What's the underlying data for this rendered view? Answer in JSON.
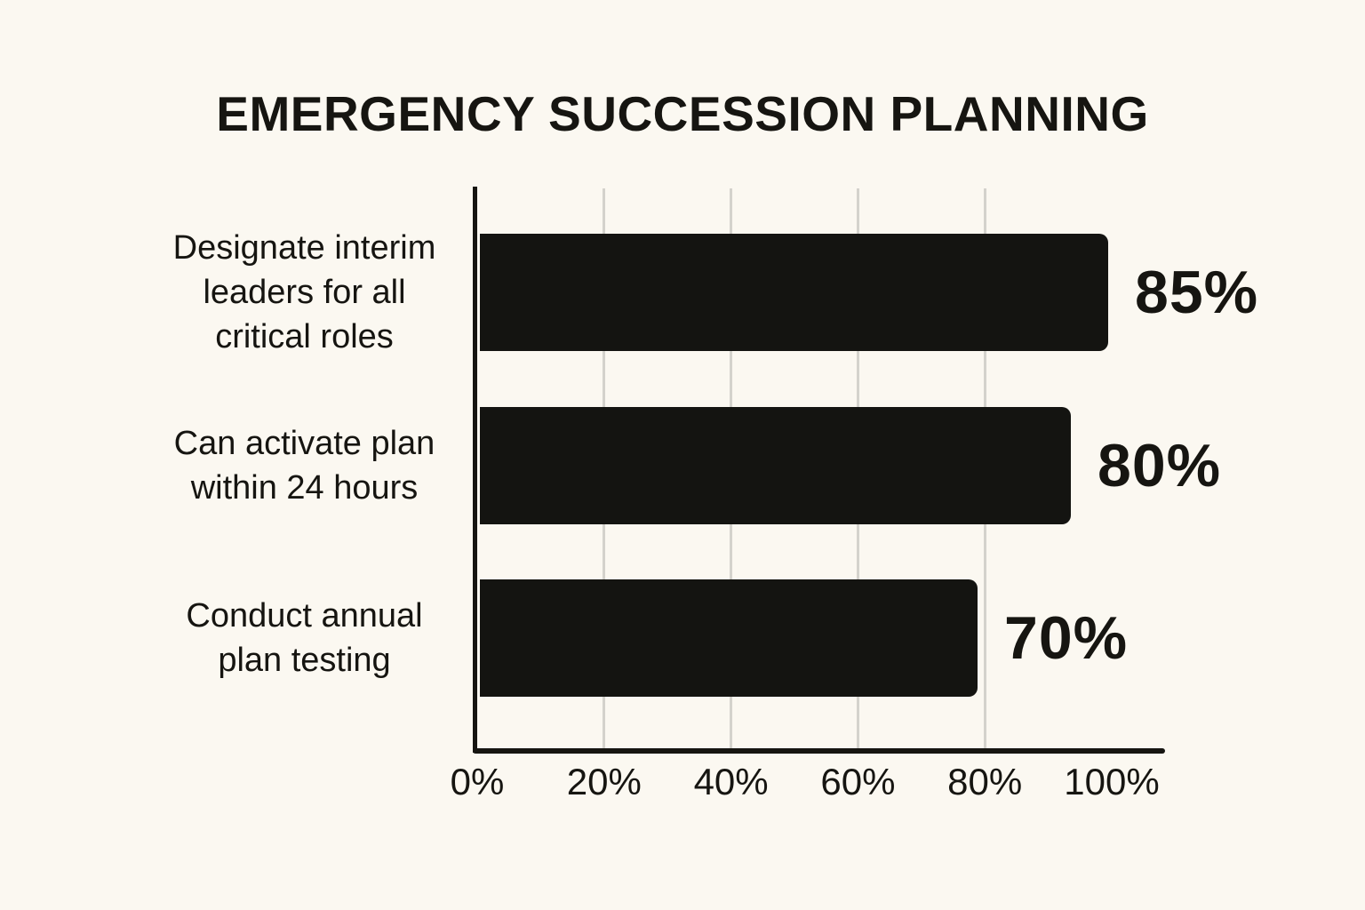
{
  "chart_data": {
    "type": "bar",
    "orientation": "horizontal",
    "title": "EMERGENCY SUCCESSION PLANNING",
    "categories": [
      "Designate interim leaders for all critical roles",
      "Can activate plan within 24 hours",
      "Conduct annual plan testing"
    ],
    "category_display_lines": [
      "Designate interim\nleaders for all\ncritical roles",
      "Can activate plan\nwithin 24 hours",
      "Conduct annual\nplan testing"
    ],
    "values": [
      85,
      80,
      70
    ],
    "value_labels": [
      "85%",
      "80%",
      "70%"
    ],
    "x_tick_labels": [
      "0%",
      "20%",
      "40%",
      "60%",
      "80%",
      "100%"
    ],
    "x_tick_values": [
      0,
      20,
      40,
      60,
      80,
      100
    ],
    "xlim": [
      0,
      100
    ],
    "gridlines_at": [
      20,
      40,
      60,
      80
    ],
    "legend": "none",
    "colors": {
      "bar": "#141411",
      "background": "#fbf8f1",
      "gridline": "#d4d2cc",
      "axis": "#161511",
      "text": "#161511"
    },
    "layout_hints": {
      "grid": "vertical gridlines only, no gridline at 0% or 100%",
      "value_label_position": "right of bar end",
      "category_label_position": "left of axis, center-aligned",
      "bar_display_pct_of_axis": [
        99.0,
        93.1,
        78.4
      ],
      "bars_drawn_longer_than_labeled_values": true
    }
  }
}
